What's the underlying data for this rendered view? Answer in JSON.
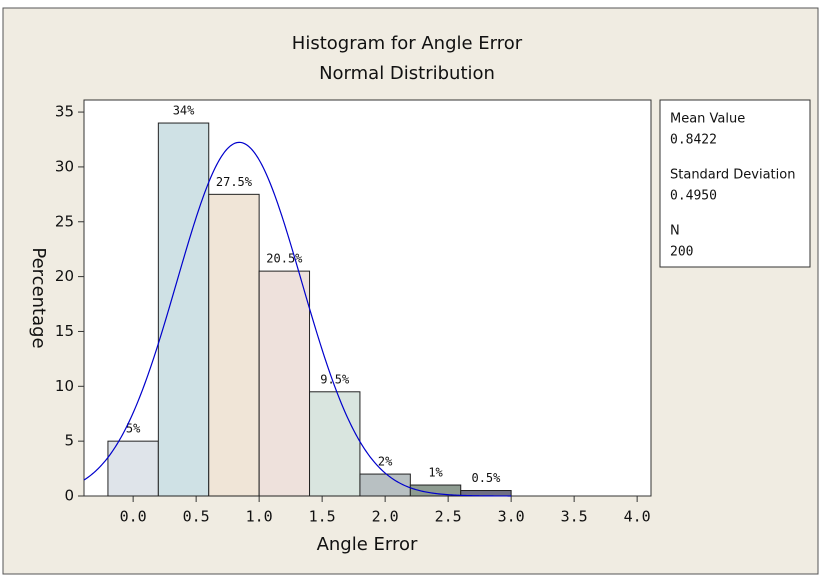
{
  "chart_data": {
    "type": "histogram",
    "title": "Histogram for Angle Error",
    "subtitle": "Normal Distribution",
    "x_label": "Angle Error",
    "y_label": "Percentage",
    "bins": [
      -0.2,
      0.2,
      0.6,
      1.0,
      1.4,
      1.8,
      2.2,
      2.6,
      3.0
    ],
    "values": [
      5,
      34,
      27.5,
      20.5,
      9.5,
      2,
      1,
      0.5
    ],
    "value_labels": [
      "5%",
      "34%",
      "27.5%",
      "20.5%",
      "9.5%",
      "2%",
      "1%",
      "0.5%"
    ],
    "colors": [
      "#dfe4ea",
      "#cfe1e5",
      "#f0e5d7",
      "#eee1dc",
      "#d9e5df",
      "#b8c0c2",
      "#8e9c91",
      "#6f6f84"
    ],
    "curve_color": "#0000cc",
    "xlim": [
      -0.39,
      4.11
    ],
    "ylim": [
      0,
      36.1
    ],
    "xticks": [
      {
        "value": 0,
        "label": "0.0"
      },
      0.5,
      {
        "value": 1,
        "label": "1.0"
      },
      1.5,
      {
        "value": 2,
        "label": "2.0"
      },
      2.5,
      {
        "value": 3,
        "label": "3.0"
      },
      3.5,
      {
        "value": 4,
        "label": "4.0"
      }
    ],
    "yticks": [
      0,
      5,
      10,
      15,
      20,
      25,
      30,
      35
    ],
    "stats": [
      {
        "name": "Mean Value",
        "value": 0.8422
      },
      {
        "name": "Standard Deviation",
        "value": {
          "value": 0.495,
          "label": "0.4950"
        }
      },
      {
        "name": "N",
        "value": 200
      }
    ]
  }
}
